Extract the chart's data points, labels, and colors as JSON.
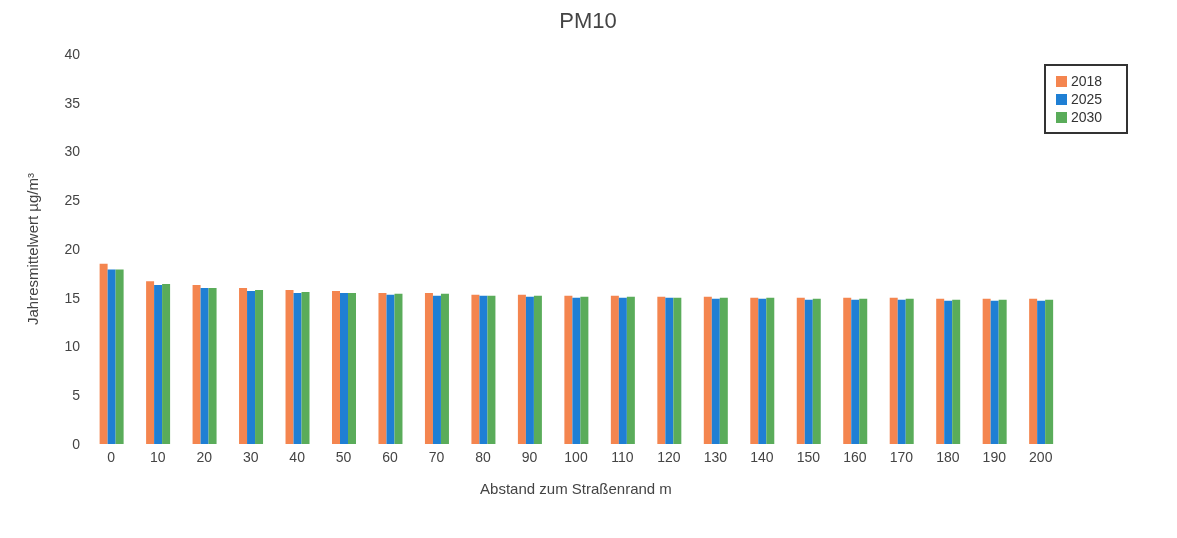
{
  "chart_data": {
    "type": "bar",
    "title": "PM10",
    "xlabel": "Abstand zum Straßenrand m",
    "ylabel": "Jahresmittelwert µg/m³",
    "categories": [
      "0",
      "10",
      "20",
      "30",
      "40",
      "50",
      "60",
      "70",
      "80",
      "90",
      "100",
      "110",
      "120",
      "130",
      "140",
      "150",
      "160",
      "170",
      "180",
      "190",
      "200"
    ],
    "series": [
      {
        "name": "2018",
        "color": "#f4854f",
        "values": [
          18.5,
          16.7,
          16.3,
          16.0,
          15.8,
          15.7,
          15.5,
          15.5,
          15.3,
          15.3,
          15.2,
          15.2,
          15.1,
          15.1,
          15.0,
          15.0,
          15.0,
          15.0,
          14.9,
          14.9,
          14.9
        ]
      },
      {
        "name": "2025",
        "color": "#1f7fd4",
        "values": [
          17.9,
          16.3,
          16.0,
          15.7,
          15.5,
          15.5,
          15.3,
          15.2,
          15.2,
          15.1,
          15.0,
          15.0,
          15.0,
          14.9,
          14.9,
          14.8,
          14.8,
          14.8,
          14.7,
          14.7,
          14.7
        ]
      },
      {
        "name": "2030",
        "color": "#5aac5a",
        "values": [
          17.9,
          16.4,
          16.0,
          15.8,
          15.6,
          15.5,
          15.4,
          15.4,
          15.2,
          15.2,
          15.1,
          15.1,
          15.0,
          15.0,
          15.0,
          14.9,
          14.9,
          14.9,
          14.8,
          14.8,
          14.8
        ]
      }
    ],
    "ylim": [
      0,
      40
    ],
    "yticks": [
      0,
      5,
      10,
      15,
      20,
      25,
      30,
      35,
      40
    ],
    "grid": false,
    "legend": "top right"
  }
}
